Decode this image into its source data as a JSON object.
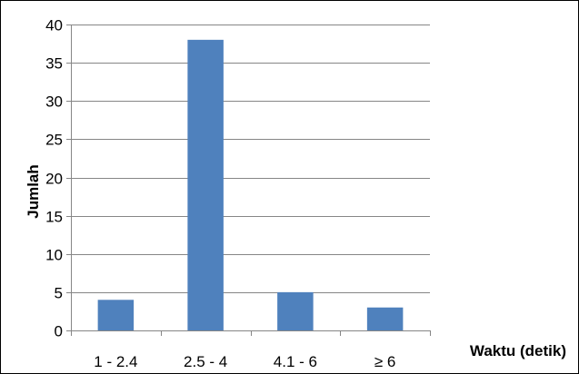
{
  "chart_data": {
    "type": "bar",
    "categories": [
      "1 - 2.4",
      "2.5 - 4",
      "4.1 - 6",
      "≥ 6"
    ],
    "series": [
      {
        "values": [
          4,
          38,
          5,
          3
        ]
      }
    ],
    "xlabel": "Waktu (detik)",
    "ylabel": "Jumlah",
    "ylim": [
      0,
      40
    ],
    "yticks": [
      0,
      5,
      10,
      15,
      20,
      25,
      30,
      35,
      40
    ],
    "grid": true,
    "legend": "none",
    "colors": {
      "bar": "#4F81BD",
      "grid": "#868686",
      "axis": "#868686"
    }
  }
}
